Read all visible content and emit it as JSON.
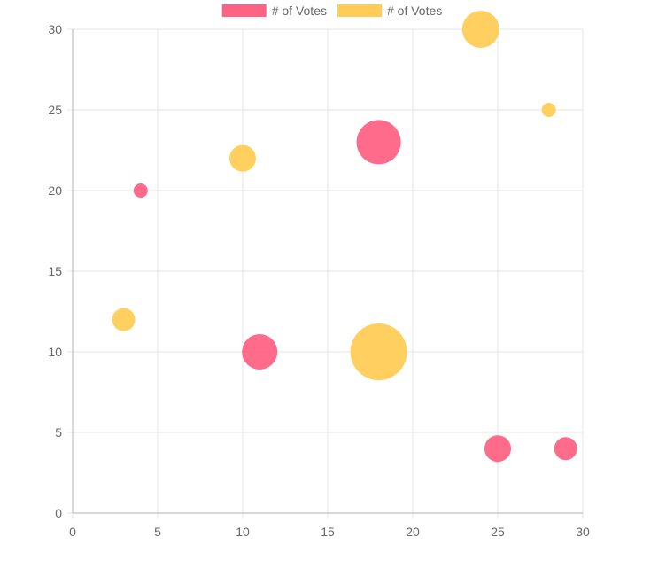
{
  "chart_data": {
    "type": "bubble",
    "title": "",
    "xlabel": "",
    "ylabel": "",
    "xlim": [
      0,
      30
    ],
    "ylim": [
      0,
      30
    ],
    "x_ticks": [
      0,
      5,
      10,
      15,
      20,
      25,
      30
    ],
    "y_ticks": [
      0,
      5,
      10,
      15,
      20,
      25,
      30
    ],
    "grid": true,
    "legend_position": "top",
    "series": [
      {
        "name": "# of Votes",
        "color": "#ff6384",
        "points": [
          {
            "x": 4,
            "y": 20,
            "r": 8
          },
          {
            "x": 18,
            "y": 23,
            "r": 25
          },
          {
            "x": 11,
            "y": 10,
            "r": 20
          },
          {
            "x": 25,
            "y": 4,
            "r": 15
          },
          {
            "x": 29,
            "y": 4,
            "r": 13
          }
        ]
      },
      {
        "name": "# of Votes",
        "color": "#ffcd56",
        "points": [
          {
            "x": 24,
            "y": 30,
            "r": 21
          },
          {
            "x": 28,
            "y": 25,
            "r": 8
          },
          {
            "x": 10,
            "y": 22,
            "r": 15
          },
          {
            "x": 3,
            "y": 12,
            "r": 13
          },
          {
            "x": 18,
            "y": 10,
            "r": 32
          }
        ]
      }
    ]
  }
}
